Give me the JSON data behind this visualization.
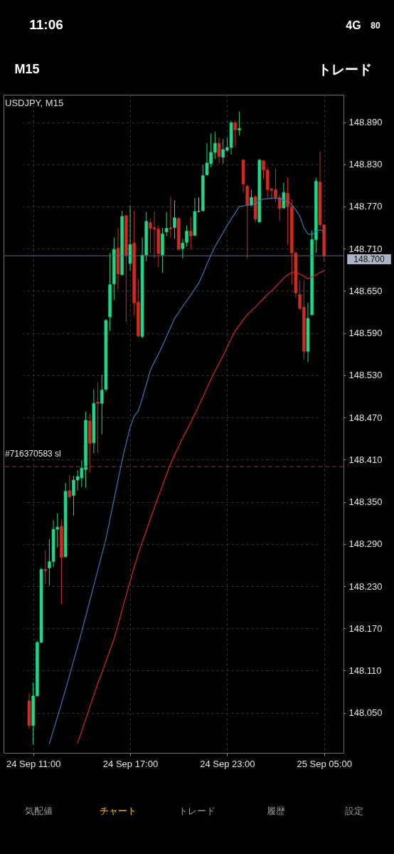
{
  "chart_data": {
    "type": "candlestick",
    "title": "USDJPY, M15",
    "categories": [
      null,
      "24 Sep 11:00",
      null,
      null,
      null,
      null,
      null,
      null,
      null,
      null,
      null,
      null,
      null,
      null,
      null,
      null,
      null,
      null,
      null,
      null,
      null,
      null,
      null,
      null,
      null,
      "24 Sep 17:00",
      null,
      null,
      null,
      null,
      null,
      null,
      null,
      null,
      null,
      null,
      null,
      null,
      null,
      null,
      null,
      null,
      null,
      null,
      null,
      null,
      null,
      null,
      null,
      "24 Sep 23:00",
      null,
      null,
      null,
      null,
      null,
      null,
      null,
      null,
      null,
      null,
      null,
      null,
      null,
      null,
      null,
      null,
      null,
      null,
      null,
      null,
      null,
      null,
      null,
      "25 Sep 05:00"
    ],
    "ohlc": [
      [
        148.067,
        148.078,
        148.027,
        148.032
      ],
      [
        148.032,
        148.093,
        148.005,
        148.074
      ],
      [
        148.074,
        148.152,
        148.073,
        148.15
      ],
      [
        148.15,
        148.256,
        148.15,
        148.254
      ],
      [
        148.254,
        148.281,
        148.233,
        148.252
      ],
      [
        148.256,
        148.297,
        148.231,
        148.265
      ],
      [
        148.265,
        148.324,
        148.257,
        148.311
      ],
      [
        148.311,
        148.334,
        148.285,
        148.314
      ],
      [
        148.315,
        148.324,
        148.204,
        148.271
      ],
      [
        148.272,
        148.377,
        148.271,
        148.365
      ],
      [
        148.366,
        148.388,
        148.355,
        148.357
      ],
      [
        148.359,
        148.387,
        148.33,
        148.381
      ],
      [
        148.381,
        148.395,
        148.366,
        148.386
      ],
      [
        148.384,
        148.409,
        148.371,
        148.398
      ],
      [
        148.396,
        148.478,
        148.37,
        148.466
      ],
      [
        148.465,
        148.476,
        148.392,
        148.433
      ],
      [
        148.434,
        148.51,
        148.419,
        148.49
      ],
      [
        148.492,
        148.52,
        148.419,
        148.49
      ],
      [
        148.49,
        148.531,
        148.446,
        148.509
      ],
      [
        148.51,
        148.61,
        148.507,
        148.608
      ],
      [
        148.613,
        148.704,
        148.593,
        148.659
      ],
      [
        148.66,
        148.726,
        148.637,
        148.709
      ],
      [
        148.711,
        148.74,
        148.652,
        148.674
      ],
      [
        148.673,
        148.764,
        148.672,
        148.756
      ],
      [
        148.757,
        148.758,
        148.606,
        148.701
      ],
      [
        148.689,
        148.771,
        148.679,
        148.716
      ],
      [
        148.718,
        148.764,
        148.615,
        148.633
      ],
      [
        148.634,
        148.667,
        148.584,
        148.586
      ],
      [
        148.585,
        148.726,
        148.583,
        148.701
      ],
      [
        148.701,
        148.762,
        148.692,
        148.749
      ],
      [
        148.747,
        148.753,
        148.703,
        148.739
      ],
      [
        148.74,
        148.763,
        148.696,
        148.738
      ],
      [
        148.738,
        148.743,
        148.684,
        148.703
      ],
      [
        148.701,
        148.74,
        148.676,
        148.731
      ],
      [
        148.734,
        148.762,
        148.728,
        148.739
      ],
      [
        148.74,
        148.784,
        148.726,
        148.738
      ],
      [
        148.74,
        148.779,
        148.724,
        148.754
      ],
      [
        148.753,
        148.755,
        148.708,
        148.709
      ],
      [
        148.71,
        148.724,
        148.696,
        148.718
      ],
      [
        148.719,
        148.743,
        148.713,
        148.735
      ],
      [
        148.735,
        148.755,
        148.709,
        148.728
      ],
      [
        148.729,
        148.782,
        148.728,
        148.763
      ],
      [
        148.763,
        148.783,
        148.762,
        148.763
      ],
      [
        148.764,
        148.829,
        148.763,
        148.814
      ],
      [
        148.815,
        148.86,
        148.814,
        148.832
      ],
      [
        148.831,
        148.874,
        148.826,
        148.847
      ],
      [
        148.847,
        148.876,
        148.838,
        148.86
      ],
      [
        148.86,
        148.868,
        148.831,
        148.841
      ],
      [
        148.84,
        148.866,
        148.831,
        148.851
      ],
      [
        148.85,
        148.868,
        148.848,
        148.854
      ],
      [
        148.854,
        148.892,
        148.844,
        148.889
      ],
      [
        148.889,
        148.892,
        148.855,
        148.879
      ],
      [
        148.879,
        148.905,
        148.871,
        148.881
      ],
      [
        148.836,
        148.838,
        148.79,
        148.802
      ],
      [
        148.799,
        148.801,
        148.696,
        148.772
      ],
      [
        148.772,
        148.794,
        148.77,
        148.783
      ],
      [
        148.784,
        148.786,
        148.747,
        148.752
      ],
      [
        148.748,
        148.838,
        148.747,
        148.836
      ],
      [
        148.835,
        148.836,
        148.809,
        148.822
      ],
      [
        148.822,
        148.826,
        148.782,
        148.794
      ],
      [
        148.795,
        148.797,
        148.78,
        148.793
      ],
      [
        148.794,
        148.824,
        148.777,
        148.783
      ],
      [
        148.783,
        148.787,
        148.75,
        148.767
      ],
      [
        148.768,
        148.804,
        148.767,
        148.79
      ],
      [
        148.789,
        148.811,
        148.716,
        148.77
      ],
      [
        148.77,
        148.78,
        148.659,
        148.704
      ],
      [
        148.704,
        148.706,
        148.64,
        148.647
      ],
      [
        148.645,
        148.665,
        148.623,
        148.625
      ],
      [
        148.627,
        148.665,
        148.552,
        148.564
      ],
      [
        148.564,
        148.633,
        148.549,
        148.611
      ],
      [
        148.616,
        148.736,
        148.615,
        148.723
      ],
      [
        148.723,
        148.811,
        148.704,
        148.806
      ],
      [
        148.805,
        148.848,
        148.74,
        148.744
      ],
      [
        148.744,
        148.745,
        148.692,
        148.7
      ]
    ],
    "colors": [
      "#d12b1f",
      "#1fd68a",
      "#1fd68a",
      "#1fd68a",
      "#d12b1f",
      "#1fd68a",
      "#1fd68a",
      "#1fd68a",
      "#d12b1f",
      "#1fd68a",
      "#d12b1f",
      "#1fd68a",
      "#1fd68a",
      "#1fd68a",
      "#1fd68a",
      "#d12b1f",
      "#1fd68a",
      "#d12b1f",
      "#1fd68a",
      "#1fd68a",
      "#1fd68a",
      "#1fd68a",
      "#d12b1f",
      "#1fd68a",
      "#d12b1f",
      "#1fd68a",
      "#d12b1f",
      "#d12b1f",
      "#1fd68a",
      "#1fd68a",
      "#d12b1f",
      "#d12b1f",
      "#d12b1f",
      "#1fd68a",
      "#1fd68a",
      "#d12b1f",
      "#1fd68a",
      "#d12b1f",
      "#1fd68a",
      "#1fd68a",
      "#d12b1f",
      "#1fd68a",
      "#c8c8c8",
      "#1fd68a",
      "#1fd68a",
      "#1fd68a",
      "#1fd68a",
      "#d12b1f",
      "#1fd68a",
      "#1fd68a",
      "#1fd68a",
      "#d12b1f",
      "#1fd68a",
      "#d12b1f",
      "#d12b1f",
      "#1fd68a",
      "#d12b1f",
      "#1fd68a",
      "#d12b1f",
      "#d12b1f",
      "#d12b1f",
      "#d12b1f",
      "#d12b1f",
      "#1fd68a",
      "#d12b1f",
      "#d12b1f",
      "#d12b1f",
      "#d12b1f",
      "#d12b1f",
      "#1fd68a",
      "#1fd68a",
      "#1fd68a",
      "#d12b1f",
      "#d12b1f"
    ],
    "series": [
      {
        "type": "line",
        "color": "#3a78b8",
        "values": [
          null,
          null,
          null,
          null,
          null,
          148.006,
          148.025,
          148.044,
          148.063,
          148.083,
          148.103,
          148.124,
          148.144,
          148.165,
          148.187,
          148.209,
          148.231,
          148.253,
          148.275,
          148.297,
          148.325,
          148.353,
          148.381,
          148.409,
          148.433,
          148.456,
          148.472,
          148.479,
          148.497,
          148.517,
          148.537,
          148.549,
          148.56,
          148.572,
          148.585,
          148.598,
          148.611,
          148.619,
          148.628,
          148.636,
          148.644,
          148.653,
          148.661,
          148.674,
          148.688,
          148.701,
          148.713,
          148.723,
          148.733,
          148.743,
          148.752,
          148.761,
          148.77,
          148.771,
          148.772,
          148.772,
          148.774,
          148.778,
          148.781,
          148.781,
          148.782,
          148.782,
          148.781,
          148.779,
          148.777,
          148.773,
          148.765,
          148.756,
          148.74,
          148.731,
          148.73,
          148.734,
          148.737,
          148.734
        ]
      },
      {
        "type": "line",
        "color": "#e3241c",
        "values": [
          null,
          null,
          null,
          null,
          null,
          null,
          null,
          null,
          null,
          null,
          null,
          null,
          148.007,
          148.024,
          148.041,
          148.058,
          148.075,
          148.092,
          148.107,
          148.123,
          148.139,
          148.155,
          148.175,
          148.196,
          148.217,
          148.237,
          148.257,
          148.276,
          148.293,
          148.309,
          148.326,
          148.342,
          148.358,
          148.373,
          148.389,
          148.404,
          148.417,
          148.429,
          148.441,
          148.452,
          148.463,
          148.475,
          148.487,
          148.499,
          148.512,
          148.524,
          148.536,
          148.547,
          148.558,
          148.57,
          148.582,
          148.593,
          148.601,
          148.609,
          148.616,
          148.622,
          148.627,
          148.633,
          148.639,
          148.645,
          148.65,
          148.656,
          148.662,
          148.668,
          148.673,
          148.676,
          148.677,
          148.674,
          148.671,
          148.667,
          148.67,
          148.673,
          148.676,
          148.679
        ]
      }
    ],
    "ylim": [
      147.993,
      148.929
    ],
    "yticks": [
      {
        "value": 148.05,
        "label": "148.050"
      },
      {
        "value": 148.11,
        "label": "148.110"
      },
      {
        "value": 148.17,
        "label": "148.170"
      },
      {
        "value": 148.23,
        "label": "148.230"
      },
      {
        "value": 148.29,
        "label": "148.290"
      },
      {
        "value": 148.35,
        "label": "148.350"
      },
      {
        "value": 148.41,
        "label": "148.410"
      },
      {
        "value": 148.47,
        "label": "148.470"
      },
      {
        "value": 148.53,
        "label": "148.530"
      },
      {
        "value": 148.59,
        "label": "148.590"
      },
      {
        "value": 148.65,
        "label": "148.650"
      },
      {
        "value": 148.71,
        "label": "148.710"
      },
      {
        "value": 148.77,
        "label": "148.770"
      },
      {
        "value": 148.83,
        "label": "148.830"
      },
      {
        "value": 148.89,
        "label": "148.890"
      }
    ],
    "grid": true,
    "ref_lines": [
      {
        "axis": "y",
        "value": 148.7,
        "label": "148.700",
        "color": "#5c6c7e",
        "line_style": "solid"
      },
      {
        "axis": "y",
        "value": 148.4,
        "label": "#716370583 sl",
        "color": "#a8282a",
        "line_style": "dashed"
      }
    ],
    "annotations": [
      "11:06",
      "4G",
      "80",
      "M15",
      "トレード",
      "気配値",
      "チャート",
      "トレード",
      "履歴",
      "設定"
    ]
  }
}
